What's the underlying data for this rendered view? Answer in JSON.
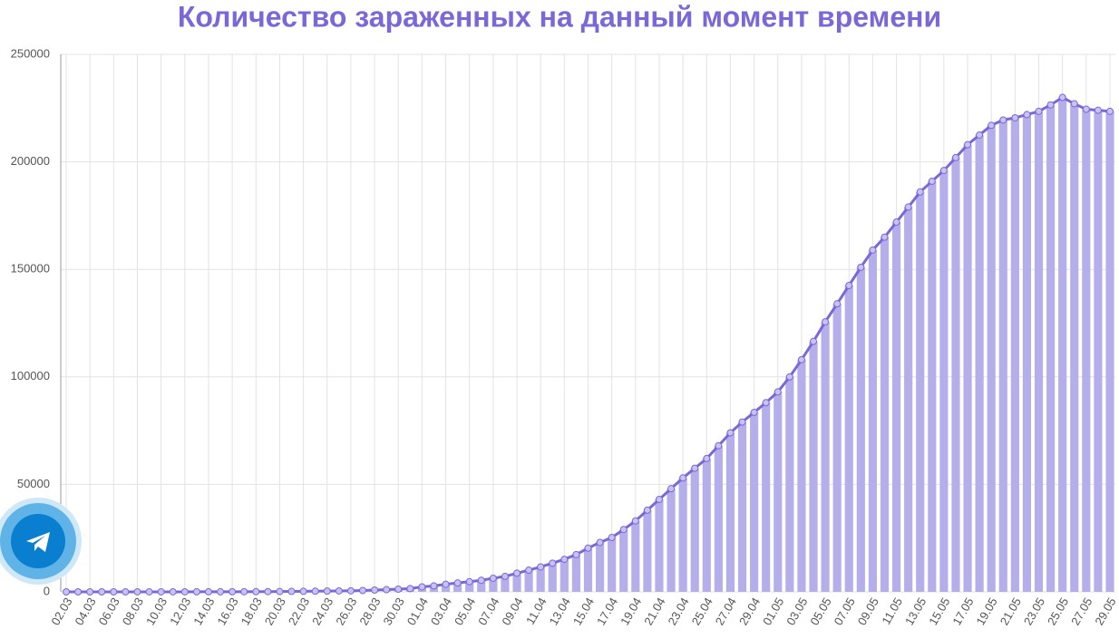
{
  "chart_data": {
    "type": "bar-line",
    "title": "Количество зараженных на данный момент времени",
    "categories": [
      "02.03",
      null,
      "04.03",
      null,
      "06.03",
      null,
      "08.03",
      null,
      "10.03",
      null,
      "12.03",
      null,
      "14.03",
      null,
      "16.03",
      null,
      "18.03",
      null,
      "20.03",
      null,
      "22.03",
      null,
      "24.03",
      null,
      "26.03",
      null,
      "28.03",
      null,
      "30.03",
      null,
      "01.04",
      null,
      "03.04",
      null,
      "05.04",
      null,
      "07.04",
      null,
      "09.04",
      null,
      "11.04",
      null,
      "13.04",
      null,
      "15.04",
      null,
      "17.04",
      null,
      "19.04",
      null,
      "21.04",
      null,
      "23.04",
      null,
      "25.04",
      null,
      "27.04",
      null,
      "29.04",
      null,
      "01.05",
      null,
      "03.05",
      null,
      "05.05",
      null,
      "07.05",
      null,
      "09.05",
      null,
      "11.05",
      null,
      "13.05",
      null,
      "15.05",
      null,
      "17.05",
      null,
      "19.05",
      null,
      "21.05",
      null,
      "23.05",
      null,
      "25.05",
      null,
      "27.05",
      null,
      "29.05"
    ],
    "values": [
      2,
      2,
      2,
      3,
      3,
      4,
      10,
      10,
      14,
      17,
      20,
      28,
      34,
      45,
      59,
      63,
      90,
      114,
      147,
      199,
      253,
      306,
      367,
      438,
      495,
      658,
      840,
      1036,
      1264,
      1534,
      2337,
      2777,
      3548,
      4149,
      4731,
      5389,
      6343,
      7201,
      8672,
      10100,
      11617,
      13336,
      15150,
      17348,
      20346,
      23000,
      25300,
      29000,
      33000,
      38000,
      43000,
      48000,
      53000,
      57500,
      62000,
      68000,
      74000,
      79000,
      83500,
      88000,
      93000,
      100000,
      108000,
      116500,
      125600,
      134000,
      142500,
      151000,
      159000,
      165000,
      172000,
      179000,
      186000,
      191000,
      196000,
      202000,
      208000,
      212500,
      217000,
      219500,
      220500,
      222000,
      223500,
      226500,
      230000,
      227000,
      224500,
      224000,
      223500
    ],
    "bar_color": "#b4aeeb",
    "line_color": "#7b68d8",
    "ylim": [
      0,
      250000
    ],
    "yticks": [
      0,
      50000,
      100000,
      150000,
      200000,
      250000
    ],
    "grid": true
  }
}
